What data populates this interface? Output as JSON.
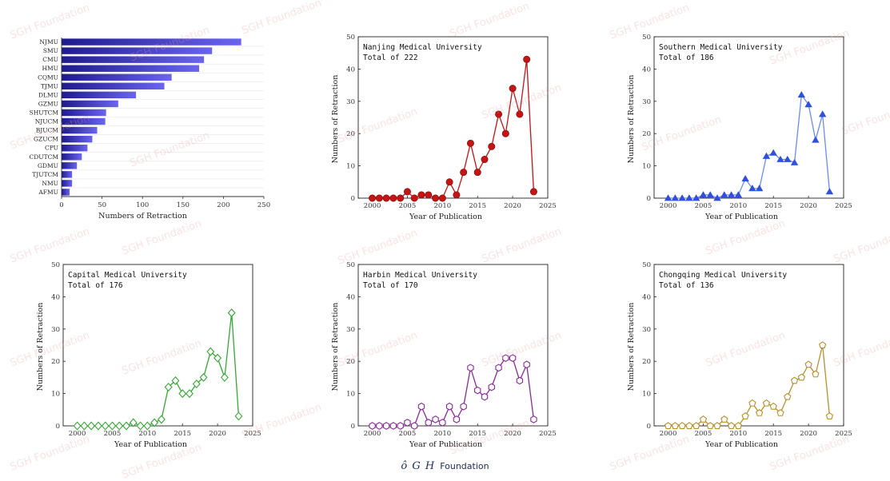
{
  "watermark": "SGH Foundation",
  "footer": {
    "logo": "ô G Н",
    "brand": "Foundation"
  },
  "chart_data": [
    {
      "type": "bar",
      "orientation": "horizontal",
      "categories": [
        "NJMU",
        "SMU",
        "CMU",
        "HMU",
        "CQMU",
        "TJMU",
        "DLMU",
        "GZMU",
        "SHUTCM",
        "NJUCM",
        "BJUCM",
        "GZUCM",
        "CPU",
        "CDUTCM",
        "GDMU",
        "TJUTCM",
        "NMU",
        "AFMU"
      ],
      "values": [
        222,
        186,
        176,
        170,
        136,
        127,
        92,
        70,
        55,
        54,
        44,
        38,
        32,
        25,
        19,
        13,
        13,
        10
      ],
      "xlabel": "Numbers of Retraction",
      "xlim": [
        0,
        250
      ],
      "xticks": [
        0,
        50,
        100,
        150,
        200,
        250
      ],
      "colors": [
        "#1f1a8c",
        "#6a64f0"
      ]
    },
    {
      "type": "line",
      "title": "Nanjing Medical University",
      "subtitle": "Total of 222",
      "xlabel": "Year of Publication",
      "ylabel": "Numbers of Retraction",
      "xlim": [
        1998,
        2025
      ],
      "ylim": [
        0,
        50
      ],
      "xticks": [
        2000,
        2005,
        2010,
        2015,
        2020,
        2025
      ],
      "yticks": [
        0,
        10,
        20,
        30,
        40,
        50
      ],
      "marker": "circle-filled",
      "color": "#c41414",
      "x": [
        2000,
        2001,
        2002,
        2003,
        2004,
        2005,
        2006,
        2007,
        2008,
        2009,
        2010,
        2011,
        2012,
        2013,
        2014,
        2015,
        2016,
        2017,
        2018,
        2019,
        2020,
        2021,
        2022,
        2023
      ],
      "values": [
        0,
        0,
        0,
        0,
        0,
        2,
        0,
        1,
        1,
        0,
        0,
        5,
        1,
        8,
        17,
        8,
        12,
        16,
        26,
        20,
        34,
        26,
        43,
        2
      ]
    },
    {
      "type": "line",
      "title": "Southern Medical University",
      "subtitle": "Total of 186",
      "xlabel": "Year of Publication",
      "ylabel": "Numbers of Retraction",
      "xlim": [
        1998,
        2025
      ],
      "ylim": [
        0,
        50
      ],
      "xticks": [
        2000,
        2005,
        2010,
        2015,
        2020,
        2025
      ],
      "yticks": [
        0,
        10,
        20,
        30,
        40,
        50
      ],
      "marker": "triangle-filled",
      "color": "#2f4fe0",
      "linecolor": "#6a8bf5",
      "x": [
        2000,
        2001,
        2002,
        2003,
        2004,
        2005,
        2006,
        2007,
        2008,
        2009,
        2010,
        2011,
        2012,
        2013,
        2014,
        2015,
        2016,
        2017,
        2018,
        2019,
        2020,
        2021,
        2022,
        2023
      ],
      "values": [
        0,
        0,
        0,
        0,
        0,
        1,
        1,
        0,
        1,
        1,
        1,
        6,
        3,
        3,
        13,
        14,
        12,
        12,
        11,
        32,
        29,
        18,
        26,
        2
      ]
    },
    {
      "type": "line",
      "title": "Capital Medical University",
      "subtitle": "Total of 176",
      "xlabel": "Year of Publication",
      "ylabel": "Numbers of Retraction",
      "xlim": [
        1998,
        2025
      ],
      "ylim": [
        0,
        50
      ],
      "xticks": [
        2000,
        2005,
        2010,
        2015,
        2020,
        2025
      ],
      "yticks": [
        0,
        10,
        20,
        30,
        40,
        50
      ],
      "marker": "diamond-open",
      "color": "#34a834",
      "x": [
        2000,
        2001,
        2002,
        2003,
        2004,
        2005,
        2006,
        2007,
        2008,
        2009,
        2010,
        2011,
        2012,
        2013,
        2014,
        2015,
        2016,
        2017,
        2018,
        2019,
        2020,
        2021,
        2022,
        2023
      ],
      "values": [
        0,
        0,
        0,
        0,
        0,
        0,
        0,
        0,
        1,
        0,
        0,
        1,
        2,
        12,
        14,
        10,
        10,
        13,
        15,
        23,
        21,
        15,
        35,
        3
      ]
    },
    {
      "type": "line",
      "title": "Harbin Medical University",
      "subtitle": "Total of 170",
      "xlabel": "Year of Publication",
      "ylabel": "Numbers of Retraction",
      "xlim": [
        1998,
        2025
      ],
      "ylim": [
        0,
        50
      ],
      "xticks": [
        2000,
        2005,
        2010,
        2015,
        2020,
        2025
      ],
      "yticks": [
        0,
        10,
        20,
        30,
        40,
        50
      ],
      "marker": "hexagon-open",
      "color": "#8a2a9a",
      "x": [
        2000,
        2001,
        2002,
        2003,
        2004,
        2005,
        2006,
        2007,
        2008,
        2009,
        2010,
        2011,
        2012,
        2013,
        2014,
        2015,
        2016,
        2017,
        2018,
        2019,
        2020,
        2021,
        2022,
        2023
      ],
      "values": [
        0,
        0,
        0,
        0,
        0,
        1,
        0,
        6,
        1,
        2,
        1,
        6,
        2,
        6,
        18,
        11,
        9,
        12,
        18,
        21,
        21,
        14,
        19,
        2
      ]
    },
    {
      "type": "line",
      "title": "Chongqing Medical University",
      "subtitle": "Total of 136",
      "xlabel": "Year of Publication",
      "ylabel": "Numbers of Retraction",
      "xlim": [
        1998,
        2025
      ],
      "ylim": [
        0,
        50
      ],
      "xticks": [
        2000,
        2005,
        2010,
        2015,
        2020,
        2025
      ],
      "yticks": [
        0,
        10,
        20,
        30,
        40,
        50
      ],
      "marker": "circle-open",
      "color": "#b8902a",
      "x": [
        2000,
        2001,
        2002,
        2003,
        2004,
        2005,
        2006,
        2007,
        2008,
        2009,
        2010,
        2011,
        2012,
        2013,
        2014,
        2015,
        2016,
        2017,
        2018,
        2019,
        2020,
        2021,
        2022,
        2023
      ],
      "values": [
        0,
        0,
        0,
        0,
        0,
        2,
        0,
        0,
        2,
        0,
        0,
        3,
        7,
        4,
        7,
        6,
        4,
        9,
        14,
        15,
        19,
        16,
        25,
        3
      ]
    }
  ]
}
